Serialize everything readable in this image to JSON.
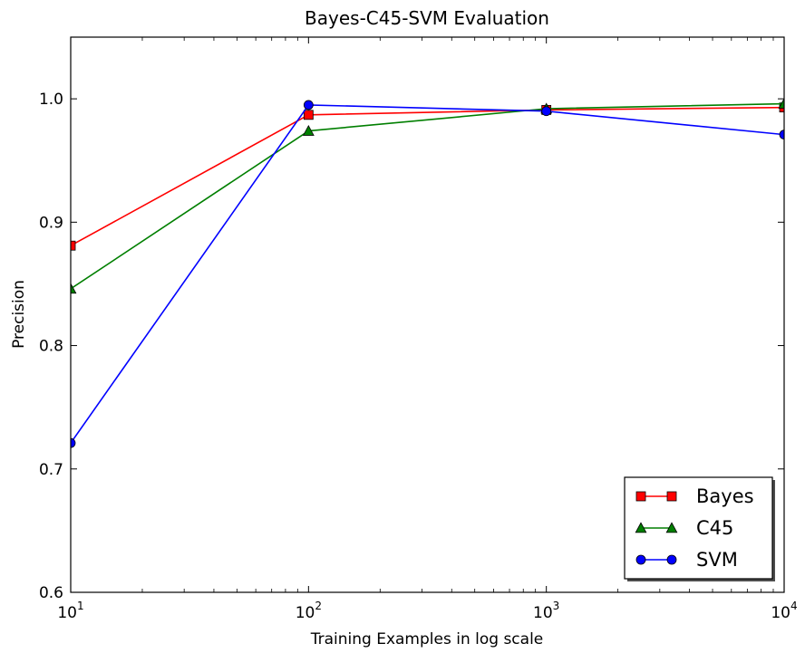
{
  "chart_data": {
    "type": "line",
    "title": "Bayes-C45-SVM Evaluation",
    "xlabel": "Training Examples in log scale",
    "ylabel": "Precision",
    "xscale": "log",
    "xlim": [
      10,
      10000
    ],
    "ylim": [
      0.6,
      1.05
    ],
    "x": [
      10,
      100,
      1000,
      10000
    ],
    "xticks": [
      {
        "value": 10,
        "base": "10",
        "exp": "1"
      },
      {
        "value": 100,
        "base": "10",
        "exp": "2"
      },
      {
        "value": 1000,
        "base": "10",
        "exp": "3"
      },
      {
        "value": 10000,
        "base": "10",
        "exp": "4"
      }
    ],
    "yticks": [
      {
        "value": 0.6,
        "label": "0.6"
      },
      {
        "value": 0.7,
        "label": "0.7"
      },
      {
        "value": 0.8,
        "label": "0.8"
      },
      {
        "value": 0.9,
        "label": "0.9"
      },
      {
        "value": 1.0,
        "label": "1.0"
      }
    ],
    "grid": false,
    "legend_position": "bottom-right",
    "series": [
      {
        "name": "Bayes",
        "color": "#ff0000",
        "marker": "square",
        "values": [
          0.881,
          0.987,
          0.991,
          0.993
        ]
      },
      {
        "name": "C45",
        "color": "#007f00",
        "marker": "triangle",
        "values": [
          0.846,
          0.974,
          0.992,
          0.996
        ]
      },
      {
        "name": "SVM",
        "color": "#0000ff",
        "marker": "circle",
        "values": [
          0.721,
          0.995,
          0.99,
          0.971
        ]
      }
    ]
  }
}
